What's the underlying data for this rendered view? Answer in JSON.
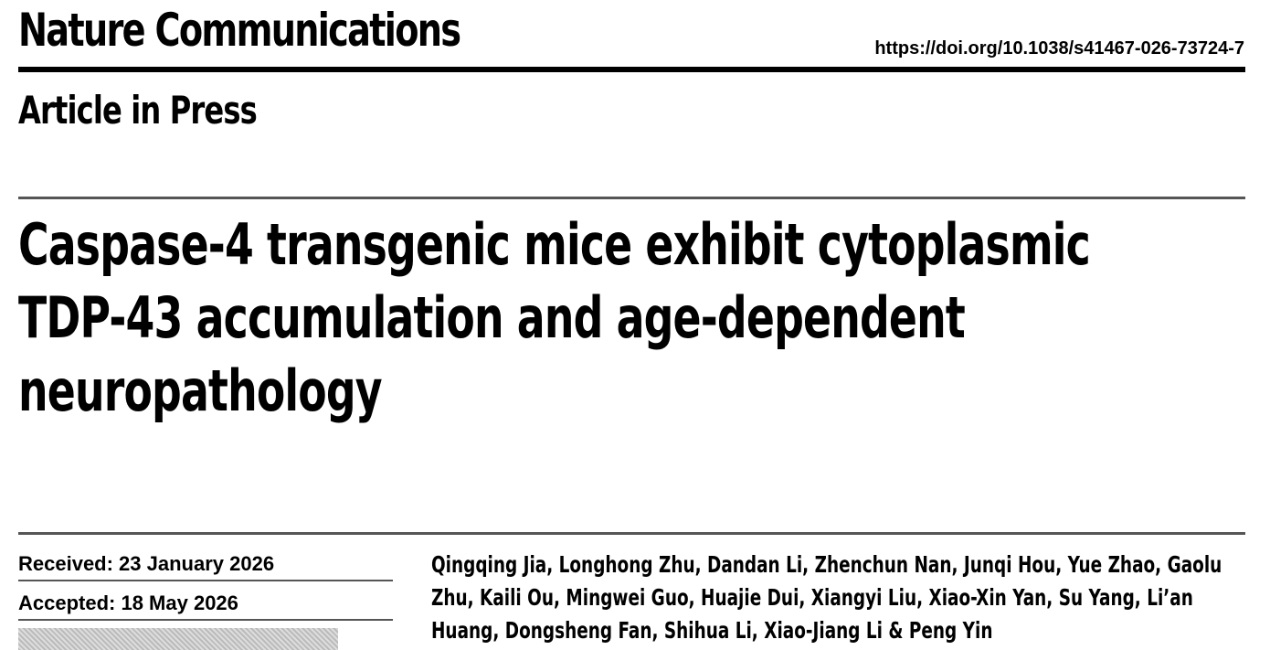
{
  "header": {
    "journal": "Nature Communications",
    "doi": "https://doi.org/10.1038/s41467-026-73724-7",
    "status": "Article in Press"
  },
  "article": {
    "title": "Caspase-4 transgenic mice exhibit cytoplasmic TDP-43 accumulation and age-dependent neuropathology",
    "received": "Received: 23 January 2026",
    "accepted": "Accepted: 18 May 2026",
    "authors": "Qingqing Jia, Longhong Zhu, Dandan Li, Zhenchun Nan, Junqi Hou, Yue Zhao, Gaolu Zhu, Kaili Ou, Mingwei Guo, Huajie Dui, Xiangyi Liu, Xiao-Xin Yan, Su Yang, Li’an Huang, Dongsheng Fan, Shihua Li, Xiao-Jiang Li & Peng Yin"
  }
}
